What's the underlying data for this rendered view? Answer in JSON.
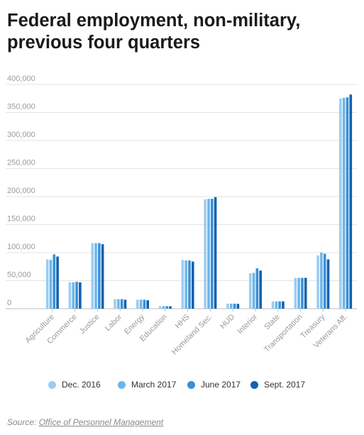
{
  "title": "Federal employment, non-military, previous four quarters",
  "colors": [
    "#9bcdf0",
    "#6cb6ea",
    "#3a8fd8",
    "#0f62ae"
  ],
  "chart_data": {
    "type": "bar",
    "title": "Federal employment, non-military, previous four quarters",
    "xlabel": "",
    "ylabel": "",
    "ylim": [
      0,
      400000
    ],
    "yticks": [
      0,
      50000,
      100000,
      150000,
      200000,
      250000,
      300000,
      350000,
      400000
    ],
    "ytick_labels": [
      "0",
      "50,000",
      "100,000",
      "150,000",
      "200,000",
      "250,000",
      "300,000",
      "350,000",
      "400,000"
    ],
    "grid": true,
    "legend_position": "bottom",
    "categories": [
      "Agriculture",
      "Commerce",
      "Justice",
      "Labor",
      "Energy",
      "Education",
      "HHS",
      "Homeland Sec.",
      "HUD",
      "Interior",
      "State",
      "Transportation",
      "Treasury",
      "Veterans Aff."
    ],
    "series": [
      {
        "name": "Dec. 2016",
        "values": [
          88000,
          47000,
          117000,
          17000,
          16000,
          4500,
          87000,
          195000,
          9000,
          63000,
          13000,
          55000,
          95000,
          375000
        ]
      },
      {
        "name": "March 2017",
        "values": [
          87000,
          47000,
          117000,
          17000,
          16000,
          4500,
          86000,
          196000,
          9000,
          64000,
          13000,
          55000,
          100000,
          376000
        ]
      },
      {
        "name": "June 2017",
        "values": [
          97000,
          48000,
          117000,
          17000,
          16000,
          4500,
          86000,
          196000,
          9000,
          72000,
          13000,
          55000,
          98000,
          377000
        ]
      },
      {
        "name": "Sept. 2017",
        "values": [
          93000,
          47000,
          115000,
          16000,
          15000,
          4300,
          84000,
          199000,
          8500,
          68000,
          13000,
          55000,
          88000,
          382000
        ]
      }
    ]
  },
  "source": {
    "prefix": "Source: ",
    "link": "Office of Personnel Management"
  }
}
